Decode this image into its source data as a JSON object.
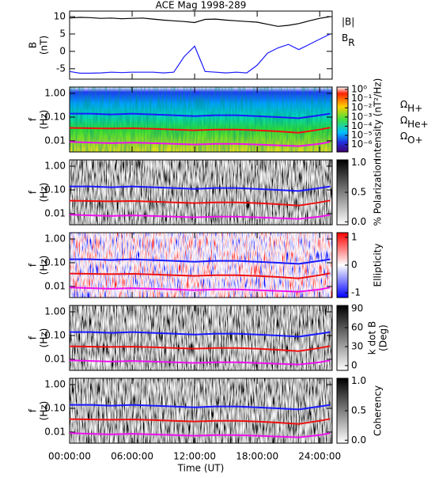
{
  "chart_data": [
    {
      "type": "line",
      "title": "ACE Mag 1998-289",
      "y_label": [
        "B",
        "(nT)"
      ],
      "xlim": [
        0,
        25.2
      ],
      "ylim": [
        -8,
        11.6
      ],
      "yticks": [
        -5,
        0,
        5,
        10
      ],
      "x": [
        0,
        1,
        2,
        3,
        4,
        5,
        6,
        7,
        8,
        9,
        10,
        11,
        12,
        13,
        14,
        15,
        16,
        17,
        18,
        19,
        20,
        21,
        22,
        23,
        24,
        25
      ],
      "series": [
        {
          "name": "|B|",
          "color": "#000000",
          "values": [
            9.6,
            9.8,
            9.7,
            9.5,
            9.6,
            9.4,
            9.5,
            9.6,
            9.3,
            9.0,
            8.8,
            8.6,
            8.3,
            9.2,
            9.3,
            9.0,
            8.8,
            8.6,
            8.4,
            7.8,
            7.2,
            7.5,
            8.0,
            8.8,
            9.5,
            10.0
          ]
        },
        {
          "name": "BR",
          "color": "#1a1aff",
          "values": [
            -5.8,
            -6.3,
            -6.3,
            -6.2,
            -6.0,
            -6.1,
            -6.0,
            -6.0,
            -6.0,
            -6.2,
            -6.0,
            -1.5,
            1.5,
            -5.8,
            -6.0,
            -6.2,
            -6.0,
            -6.2,
            -4.0,
            -0.5,
            1.0,
            2.0,
            0.5,
            2.0,
            3.5,
            5.0
          ]
        }
      ]
    },
    {
      "type": "spectrogram",
      "y_label": [
        "f",
        "(Hz)"
      ],
      "log_y": true,
      "colormap": "jet",
      "xlim": [
        0,
        25.2
      ],
      "ylim": [
        0.0034,
        1.85
      ],
      "yticks": [
        {
          "value": 1,
          "label": "1.00"
        },
        {
          "value": 0.1,
          "label": "0.10"
        },
        {
          "value": 0.01,
          "label": "0.01"
        }
      ],
      "colorbar": {
        "label": "Intensity (nT²/Hz)",
        "log": true,
        "lim": [
          1.6e-07,
          1.8
        ],
        "ticks": [
          {
            "value": 1,
            "label": "10⁰"
          },
          {
            "value": 0.1,
            "label": "10⁻¹"
          },
          {
            "value": 0.01,
            "label": "10⁻²"
          },
          {
            "value": 0.001,
            "label": "10⁻³"
          },
          {
            "value": 0.0001,
            "label": "10⁻⁴"
          },
          {
            "value": 1e-05,
            "label": "10⁻⁵"
          },
          {
            "value": 1e-06,
            "label": "10⁻⁶"
          }
        ]
      },
      "x": [
        0,
        2,
        4,
        6,
        8,
        10,
        12,
        14,
        16,
        18,
        20,
        22,
        24,
        25
      ],
      "series": [
        {
          "name": "ΩH+",
          "color": "#1a1aff",
          "values": [
            0.14,
            0.14,
            0.13,
            0.14,
            0.13,
            0.12,
            0.11,
            0.12,
            0.12,
            0.11,
            0.1,
            0.09,
            0.12,
            0.14
          ]
        },
        {
          "name": "ΩHe+",
          "color": "#ee1111",
          "values": [
            0.035,
            0.034,
            0.033,
            0.034,
            0.032,
            0.03,
            0.028,
            0.03,
            0.03,
            0.028,
            0.025,
            0.022,
            0.03,
            0.036
          ]
        },
        {
          "name": "ΩO+",
          "color": "#ee11ee",
          "values": [
            0.009,
            0.0085,
            0.008,
            0.0085,
            0.008,
            0.0075,
            0.007,
            0.0075,
            0.0075,
            0.007,
            0.0065,
            0.006,
            0.0075,
            0.009
          ]
        }
      ]
    },
    {
      "type": "spectrogram",
      "y_label": [
        "f",
        "(Hz)"
      ],
      "log_y": true,
      "colormap": "gray",
      "xlim": [
        0,
        25.2
      ],
      "ylim": [
        0.0034,
        1.85
      ],
      "yticks": [
        {
          "value": 1,
          "label": "1.00"
        },
        {
          "value": 0.1,
          "label": "0.10"
        },
        {
          "value": 0.01,
          "label": "0.01"
        }
      ],
      "colorbar": {
        "label": "% Polarization",
        "lim": [
          -0.05,
          1.05
        ],
        "ticks": [
          {
            "value": 0,
            "label": "0.0"
          },
          {
            "value": 0.5,
            "label": "0.5"
          },
          {
            "value": 1,
            "label": "1.0"
          }
        ]
      },
      "x": [
        0,
        2,
        4,
        6,
        8,
        10,
        12,
        14,
        16,
        18,
        20,
        22,
        24,
        25
      ],
      "series": [
        {
          "color": "#1a1aff",
          "values": [
            0.14,
            0.14,
            0.13,
            0.14,
            0.13,
            0.12,
            0.11,
            0.12,
            0.12,
            0.11,
            0.1,
            0.09,
            0.12,
            0.14
          ]
        },
        {
          "color": "#ee1111",
          "values": [
            0.035,
            0.034,
            0.033,
            0.034,
            0.032,
            0.03,
            0.028,
            0.03,
            0.03,
            0.028,
            0.025,
            0.022,
            0.03,
            0.036
          ]
        },
        {
          "color": "#ee11ee",
          "values": [
            0.009,
            0.0085,
            0.008,
            0.0085,
            0.008,
            0.0075,
            0.007,
            0.0075,
            0.0075,
            0.007,
            0.0065,
            0.006,
            0.0075,
            0.009
          ]
        }
      ]
    },
    {
      "type": "spectrogram",
      "y_label": [
        "f",
        "(Hz)"
      ],
      "log_y": true,
      "colormap": "bwr",
      "xlim": [
        0,
        25.2
      ],
      "ylim": [
        0.0034,
        1.85
      ],
      "yticks": [
        {
          "value": 1,
          "label": "1.00"
        },
        {
          "value": 0.1,
          "label": "0.10"
        },
        {
          "value": 0.01,
          "label": "0.01"
        }
      ],
      "colorbar": {
        "label": "Ellipticity",
        "lim": [
          -1.17,
          1.17
        ],
        "ticks": [
          1,
          0,
          -1
        ]
      },
      "x": [
        0,
        2,
        4,
        6,
        8,
        10,
        12,
        14,
        16,
        18,
        20,
        22,
        24,
        25
      ],
      "series": [
        {
          "color": "#1a1aff",
          "values": [
            0.14,
            0.14,
            0.13,
            0.14,
            0.13,
            0.12,
            0.11,
            0.12,
            0.12,
            0.11,
            0.1,
            0.09,
            0.12,
            0.14
          ]
        },
        {
          "color": "#ee1111",
          "values": [
            0.035,
            0.034,
            0.033,
            0.034,
            0.032,
            0.03,
            0.028,
            0.03,
            0.03,
            0.028,
            0.025,
            0.022,
            0.03,
            0.036
          ]
        },
        {
          "color": "#ee11ee",
          "values": [
            0.009,
            0.0085,
            0.008,
            0.0085,
            0.008,
            0.0075,
            0.007,
            0.0075,
            0.0075,
            0.007,
            0.0065,
            0.006,
            0.0075,
            0.009
          ]
        }
      ]
    },
    {
      "type": "spectrogram",
      "y_label": [
        "f",
        "(Hz)"
      ],
      "log_y": true,
      "colormap": "gray",
      "xlim": [
        0,
        25.2
      ],
      "ylim": [
        0.0034,
        1.85
      ],
      "yticks": [
        {
          "value": 1,
          "label": "1.00"
        },
        {
          "value": 0.1,
          "label": "0.10"
        },
        {
          "value": 0.01,
          "label": "0.01"
        }
      ],
      "colorbar": {
        "label": [
          "k dot B",
          "(Deg)"
        ],
        "lim": [
          -7.5,
          95
        ],
        "ticks": [
          0,
          30,
          60,
          90
        ]
      },
      "x": [
        0,
        2,
        4,
        6,
        8,
        10,
        12,
        14,
        16,
        18,
        20,
        22,
        24,
        25
      ],
      "series": [
        {
          "color": "#1a1aff",
          "values": [
            0.14,
            0.14,
            0.13,
            0.14,
            0.13,
            0.12,
            0.11,
            0.12,
            0.12,
            0.11,
            0.1,
            0.09,
            0.12,
            0.14
          ]
        },
        {
          "color": "#ee1111",
          "values": [
            0.035,
            0.034,
            0.033,
            0.034,
            0.032,
            0.03,
            0.028,
            0.03,
            0.03,
            0.028,
            0.025,
            0.022,
            0.03,
            0.036
          ]
        },
        {
          "color": "#ee11ee",
          "values": [
            0.009,
            0.0085,
            0.008,
            0.0085,
            0.008,
            0.0075,
            0.007,
            0.0075,
            0.0075,
            0.007,
            0.0065,
            0.006,
            0.0075,
            0.009
          ]
        }
      ]
    },
    {
      "type": "spectrogram",
      "y_label": [
        "f",
        "(Hz)"
      ],
      "log_y": true,
      "colormap": "gray",
      "xlim": [
        0,
        25.2
      ],
      "ylim": [
        0.0034,
        1.85
      ],
      "yticks": [
        {
          "value": 1,
          "label": "1.00"
        },
        {
          "value": 0.1,
          "label": "0.10"
        },
        {
          "value": 0.01,
          "label": "0.01"
        }
      ],
      "colorbar": {
        "label": "Coherency",
        "lim": [
          -0.05,
          1.05
        ],
        "ticks": [
          {
            "value": 0,
            "label": "0.0"
          },
          {
            "value": 0.5,
            "label": "0.5"
          },
          {
            "value": 1,
            "label": "1.0"
          }
        ]
      },
      "x_label": "Time (UT)",
      "xticks": [
        {
          "value": 0,
          "label": "00:00:00"
        },
        {
          "value": 6,
          "label": "06:00:00"
        },
        {
          "value": 12,
          "label": "12:00:00"
        },
        {
          "value": 18,
          "label": "18:00:00"
        },
        {
          "value": 24,
          "label": "24:00:00"
        }
      ],
      "x": [
        0,
        2,
        4,
        6,
        8,
        10,
        12,
        14,
        16,
        18,
        20,
        22,
        24,
        25
      ],
      "series": [
        {
          "color": "#1a1aff",
          "values": [
            0.14,
            0.14,
            0.13,
            0.14,
            0.13,
            0.12,
            0.11,
            0.12,
            0.12,
            0.11,
            0.1,
            0.09,
            0.12,
            0.14
          ]
        },
        {
          "color": "#ee1111",
          "values": [
            0.035,
            0.034,
            0.033,
            0.034,
            0.032,
            0.03,
            0.028,
            0.03,
            0.03,
            0.028,
            0.025,
            0.022,
            0.03,
            0.036
          ]
        },
        {
          "color": "#ee11ee",
          "values": [
            0.009,
            0.0085,
            0.008,
            0.0085,
            0.008,
            0.0075,
            0.007,
            0.0075,
            0.0075,
            0.007,
            0.0065,
            0.006,
            0.0075,
            0.009
          ]
        }
      ]
    }
  ]
}
